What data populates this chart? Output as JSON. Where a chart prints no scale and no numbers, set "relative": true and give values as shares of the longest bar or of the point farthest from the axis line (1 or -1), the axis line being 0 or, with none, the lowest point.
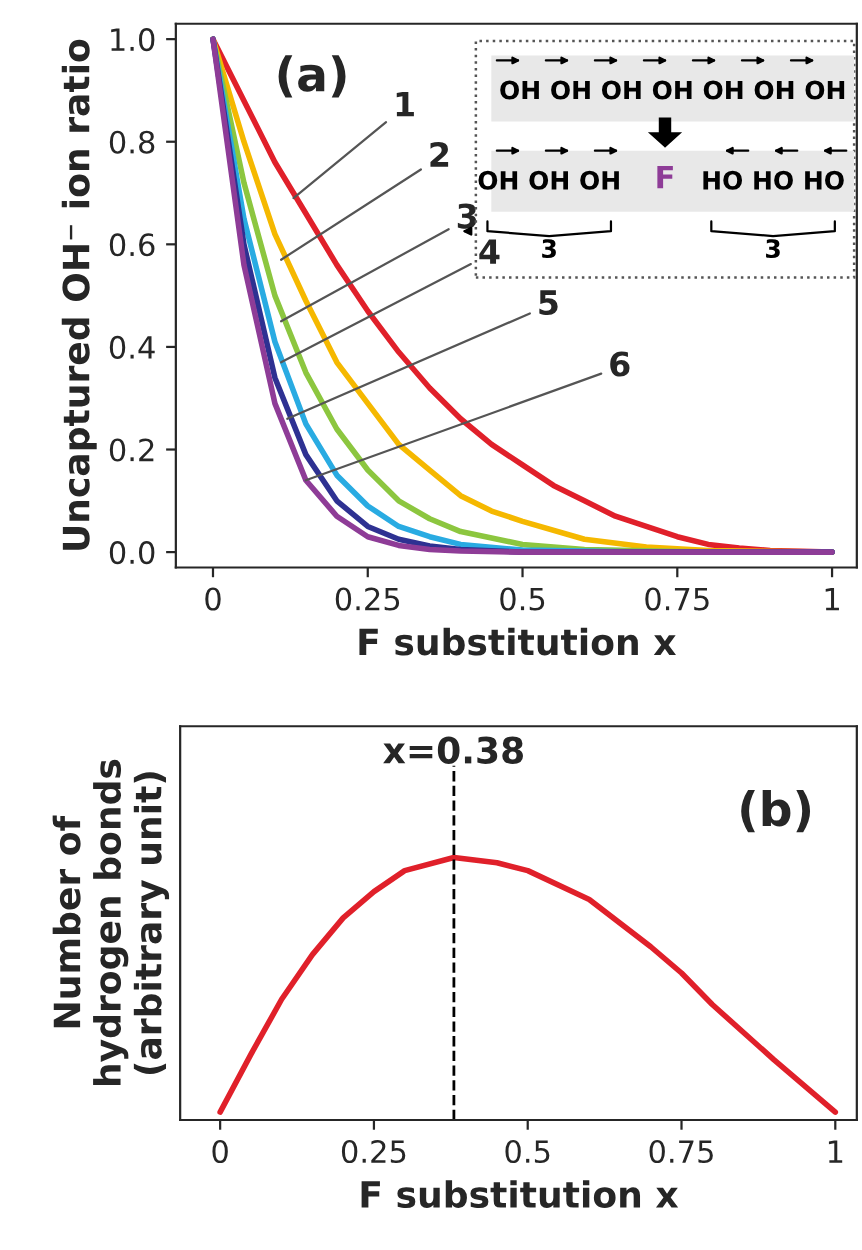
{
  "chart_data": [
    {
      "type": "line",
      "ylabel": "Uncaptured OH⁻ ion ratio",
      "xlabel": "F substitution x",
      "xlim": [
        -0.06,
        1.04
      ],
      "ylim": [
        -0.03,
        1.03
      ],
      "xticks": [
        0,
        0.25,
        0.5,
        0.75,
        1
      ],
      "yticks": [
        {
          "value": 0,
          "label": "0.0"
        },
        0.2,
        0.4,
        0.6,
        0.8,
        {
          "value": 1,
          "label": "1.0"
        }
      ],
      "grid": false,
      "legend": false,
      "marker": "none",
      "line_style": "solid",
      "series": [
        {
          "color": "#e0202a",
          "x": [
            0,
            0.05,
            0.1,
            0.15,
            0.2,
            0.25,
            0.3,
            0.35,
            0.4,
            0.45,
            0.5,
            0.55,
            0.6,
            0.65,
            0.7,
            0.75,
            0.8,
            0.85,
            0.9,
            1
          ],
          "values": [
            1.0,
            0.88,
            0.76,
            0.66,
            0.56,
            0.47,
            0.39,
            0.32,
            0.26,
            0.21,
            0.17,
            0.13,
            0.1,
            0.07,
            0.05,
            0.03,
            0.015,
            0.008,
            0.003,
            0
          ]
        },
        {
          "color": "#f5b800",
          "x": [
            0,
            0.05,
            0.1,
            0.15,
            0.2,
            0.25,
            0.3,
            0.35,
            0.4,
            0.45,
            0.5,
            0.6,
            0.7,
            0.8,
            1
          ],
          "values": [
            1.0,
            0.8,
            0.62,
            0.49,
            0.37,
            0.29,
            0.21,
            0.16,
            0.11,
            0.08,
            0.06,
            0.025,
            0.01,
            0.003,
            0
          ]
        },
        {
          "color": "#8cc63f",
          "x": [
            0,
            0.05,
            0.1,
            0.15,
            0.2,
            0.25,
            0.3,
            0.35,
            0.4,
            0.5,
            0.6,
            0.8,
            1
          ],
          "values": [
            1.0,
            0.72,
            0.5,
            0.35,
            0.24,
            0.16,
            0.1,
            0.065,
            0.04,
            0.015,
            0.005,
            0,
            0
          ]
        },
        {
          "color": "#29abe2",
          "x": [
            0,
            0.05,
            0.1,
            0.15,
            0.2,
            0.25,
            0.3,
            0.35,
            0.4,
            0.5,
            0.7,
            1
          ],
          "values": [
            1.0,
            0.65,
            0.41,
            0.25,
            0.15,
            0.09,
            0.05,
            0.03,
            0.015,
            0.004,
            0,
            0
          ]
        },
        {
          "color": "#2e3192",
          "x": [
            0,
            0.05,
            0.1,
            0.15,
            0.2,
            0.25,
            0.3,
            0.35,
            0.4,
            0.5,
            1
          ],
          "values": [
            1.0,
            0.6,
            0.34,
            0.19,
            0.1,
            0.05,
            0.025,
            0.012,
            0.005,
            0,
            0
          ]
        },
        {
          "color": "#8e3c97",
          "x": [
            0,
            0.05,
            0.1,
            0.15,
            0.2,
            0.25,
            0.3,
            0.35,
            0.4,
            0.5,
            1
          ],
          "values": [
            1.0,
            0.56,
            0.29,
            0.14,
            0.07,
            0.03,
            0.013,
            0.005,
            0.002,
            0,
            0
          ]
        }
      ],
      "annotations": [
        {
          "text": "1",
          "x": 0.13,
          "y": 0.69
        },
        {
          "text": "2",
          "x": 0.11,
          "y": 0.57
        },
        {
          "text": "3",
          "x": 0.11,
          "y": 0.45
        },
        {
          "text": "4",
          "x": 0.11,
          "y": 0.37
        },
        {
          "text": "5",
          "x": 0.12,
          "y": 0.26
        },
        {
          "text": "6",
          "x": 0.15,
          "y": 0.14
        },
        "(a)",
        "OH OH OH OH OH OH OH",
        "OH OH OH",
        "F",
        "HO HO HO",
        "3",
        "3"
      ]
    },
    {
      "type": "line",
      "relative": true,
      "ylabel": "Number of\nhydrogen bonds\n(arbitrary unit)",
      "xlabel": "F substitution x",
      "xlim": [
        -0.065,
        1.035
      ],
      "xticks": [
        0,
        0.25,
        0.5,
        0.75,
        1
      ],
      "tick_labels": "x",
      "grid": false,
      "legend": false,
      "marker": "none",
      "line_style": "solid",
      "series": [
        {
          "color": "#e0202a",
          "x": [
            0,
            0.05,
            0.1,
            0.15,
            0.2,
            0.25,
            0.3,
            0.38,
            0.45,
            0.5,
            0.6,
            0.7,
            0.75,
            0.8,
            0.9,
            1
          ],
          "values": [
            0.03,
            0.25,
            0.46,
            0.63,
            0.77,
            0.87,
            0.95,
            1.0,
            0.98,
            0.95,
            0.84,
            0.66,
            0.56,
            0.44,
            0.23,
            0.03
          ]
        }
      ],
      "ref_lines": [
        {
          "axis": "x",
          "value": 0.38,
          "label": "x=0.38",
          "color": "#000000",
          "line_style": "dashed"
        }
      ],
      "annotations": [
        "(b)"
      ]
    }
  ]
}
